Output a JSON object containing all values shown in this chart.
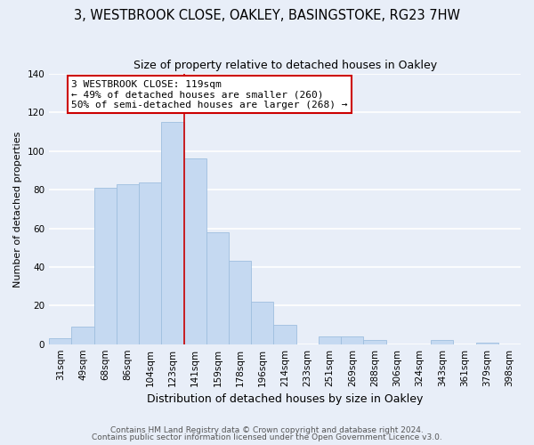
{
  "title": "3, WESTBROOK CLOSE, OAKLEY, BASINGSTOKE, RG23 7HW",
  "subtitle": "Size of property relative to detached houses in Oakley",
  "xlabel": "Distribution of detached houses by size in Oakley",
  "ylabel": "Number of detached properties",
  "categories": [
    "31sqm",
    "49sqm",
    "68sqm",
    "86sqm",
    "104sqm",
    "123sqm",
    "141sqm",
    "159sqm",
    "178sqm",
    "196sqm",
    "214sqm",
    "233sqm",
    "251sqm",
    "269sqm",
    "288sqm",
    "306sqm",
    "324sqm",
    "343sqm",
    "361sqm",
    "379sqm",
    "398sqm"
  ],
  "values": [
    3,
    9,
    81,
    83,
    84,
    115,
    96,
    58,
    43,
    22,
    10,
    0,
    4,
    4,
    2,
    0,
    0,
    2,
    0,
    1,
    0
  ],
  "bar_color": "#c5d9f1",
  "bar_edge_color": "#9fbfdf",
  "vline_color": "#cc0000",
  "vline_x_index": 5,
  "annotation_text": "3 WESTBROOK CLOSE: 119sqm\n← 49% of detached houses are smaller (260)\n50% of semi-detached houses are larger (268) →",
  "annotation_box_color": "white",
  "annotation_box_edge_color": "#cc0000",
  "ylim": [
    0,
    140
  ],
  "yticks": [
    0,
    20,
    40,
    60,
    80,
    100,
    120,
    140
  ],
  "footer1": "Contains HM Land Registry data © Crown copyright and database right 2024.",
  "footer2": "Contains public sector information licensed under the Open Government Licence v3.0.",
  "bg_color": "#e8eef8",
  "grid_color": "#ffffff",
  "title_fontsize": 10.5,
  "subtitle_fontsize": 9,
  "ylabel_fontsize": 8,
  "xlabel_fontsize": 9,
  "tick_fontsize": 7.5,
  "annotation_fontsize": 8,
  "footer_fontsize": 6.5
}
